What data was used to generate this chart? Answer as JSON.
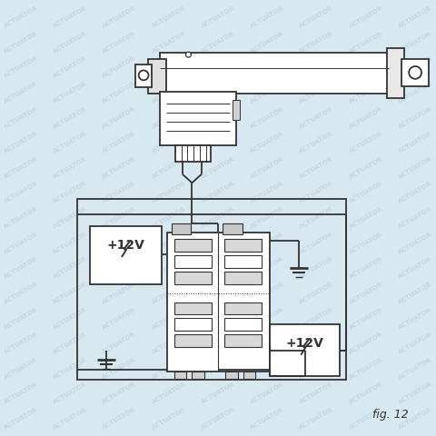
{
  "bg_color": "#d8e8f0",
  "line_color": "#333333",
  "fig_label": "fig. 12",
  "watermark_color": "#bdd0dc",
  "watermark_text": "ACTUATOR"
}
